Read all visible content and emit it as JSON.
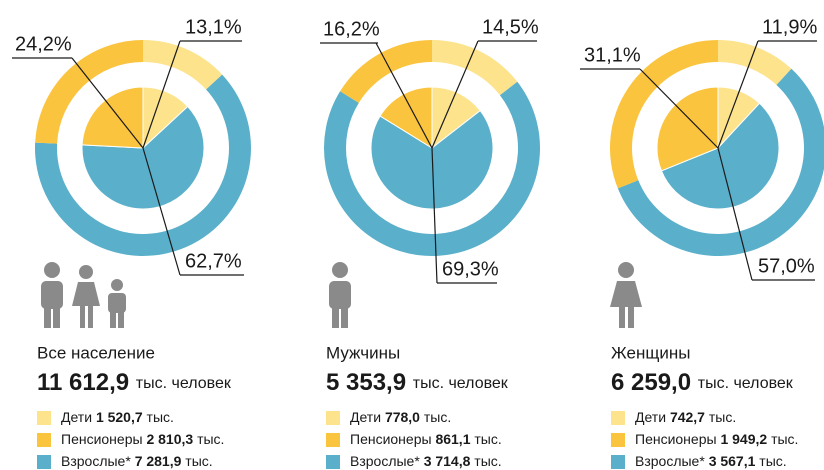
{
  "chart_data": [
    {
      "type": "pie",
      "title": "Все население",
      "total": "11 612,9",
      "total_unit": "тыс. человек",
      "categories": [
        "Дети",
        "Пенсионеры",
        "Взрослые*"
      ],
      "values": [
        13.1,
        24.2,
        62.7
      ],
      "value_labels": [
        "13,1%",
        "24,2%",
        "62,7%"
      ],
      "colors": [
        "#fde38c",
        "#fbc43f",
        "#5aafca"
      ],
      "amounts": [
        "1 520,7",
        "2 810,3",
        "7 281,9"
      ],
      "amount_unit": "тыс."
    },
    {
      "type": "pie",
      "title": "Мужчины",
      "total": "5 353,9",
      "total_unit": "тыс. человек",
      "categories": [
        "Дети",
        "Пенсионеры",
        "Взрослые*"
      ],
      "values": [
        14.5,
        16.2,
        69.3
      ],
      "value_labels": [
        "14,5%",
        "16,2%",
        "69,3%"
      ],
      "colors": [
        "#fde38c",
        "#fbc43f",
        "#5aafca"
      ],
      "amounts": [
        "778,0",
        "861,1",
        "3 714,8"
      ],
      "amount_unit": "тыс."
    },
    {
      "type": "pie",
      "title": "Женщины",
      "total": "6 259,0",
      "total_unit": "тыс. человек",
      "categories": [
        "Дети",
        "Пенсионеры",
        "Взрослые*"
      ],
      "values": [
        11.9,
        31.1,
        57.0
      ],
      "value_labels": [
        "11,9%",
        "31,1%",
        "57,0%"
      ],
      "colors": [
        "#fde38c",
        "#fbc43f",
        "#5aafca"
      ],
      "amounts": [
        "742,7",
        "1 949,2",
        "3 567,1"
      ],
      "amount_unit": "тыс."
    }
  ]
}
